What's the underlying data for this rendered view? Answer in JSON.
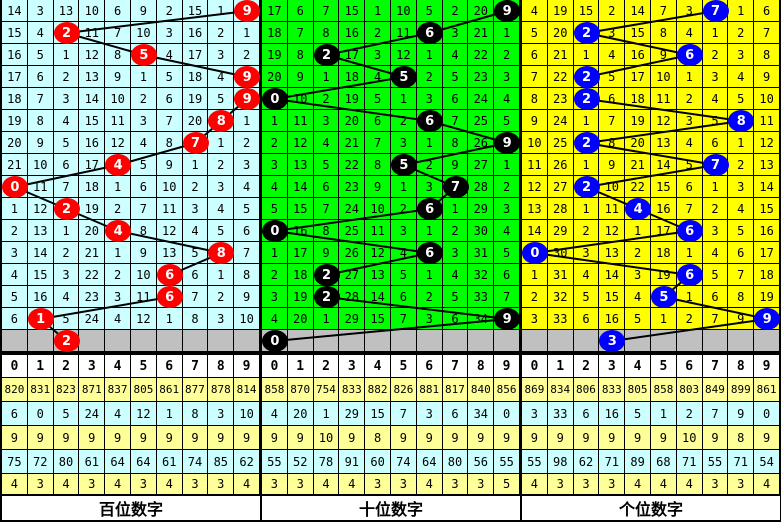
{
  "header_digits": [
    "0",
    "1",
    "2",
    "3",
    "4",
    "5",
    "6",
    "7",
    "8",
    "9"
  ],
  "colors": {
    "gray_row": "#c0c0c0",
    "stat_yellow": "#ffff99",
    "stat_cyan": "#ccffff"
  },
  "panels": [
    {
      "label": "百位数字",
      "bg": "#ccffff",
      "ball_color": "#ff0000",
      "rows": [
        [
          14,
          3,
          13,
          10,
          6,
          9,
          2,
          15,
          1,
          9
        ],
        [
          15,
          4,
          2,
          11,
          7,
          10,
          3,
          16,
          2,
          1
        ],
        [
          16,
          5,
          1,
          12,
          8,
          5,
          4,
          17,
          3,
          2
        ],
        [
          17,
          6,
          2,
          13,
          9,
          1,
          5,
          18,
          4,
          9
        ],
        [
          18,
          7,
          3,
          14,
          10,
          2,
          6,
          19,
          5,
          9
        ],
        [
          19,
          8,
          4,
          15,
          11,
          3,
          7,
          20,
          8,
          1
        ],
        [
          20,
          9,
          5,
          16,
          12,
          4,
          8,
          7,
          1,
          2
        ],
        [
          21,
          10,
          6,
          17,
          4,
          5,
          9,
          1,
          2,
          3
        ],
        [
          0,
          11,
          7,
          18,
          1,
          6,
          10,
          2,
          3,
          4
        ],
        [
          1,
          12,
          2,
          19,
          2,
          7,
          11,
          3,
          4,
          5
        ],
        [
          2,
          13,
          1,
          20,
          4,
          8,
          12,
          4,
          5,
          6
        ],
        [
          3,
          14,
          2,
          21,
          1,
          9,
          13,
          5,
          8,
          7
        ],
        [
          4,
          15,
          3,
          22,
          2,
          10,
          6,
          6,
          1,
          8
        ],
        [
          5,
          16,
          4,
          23,
          3,
          11,
          6,
          7,
          2,
          9
        ],
        [
          6,
          1,
          5,
          24,
          4,
          12,
          1,
          8,
          3,
          10
        ]
      ],
      "hits": [
        9,
        2,
        5,
        9,
        9,
        8,
        7,
        4,
        0,
        2,
        4,
        8,
        6,
        6,
        1
      ],
      "next": 2,
      "stats": [
        [
          "820",
          "831",
          "823",
          "871",
          "837",
          "805",
          "861",
          "877",
          "878",
          "814"
        ],
        [
          "6",
          "0",
          "5",
          "24",
          "4",
          "12",
          "1",
          "8",
          "3",
          "10"
        ],
        [
          "9",
          "9",
          "9",
          "9",
          "9",
          "9",
          "9",
          "9",
          "9",
          "9"
        ],
        [
          "75",
          "72",
          "80",
          "61",
          "64",
          "64",
          "61",
          "74",
          "85",
          "62"
        ],
        [
          "4",
          "3",
          "4",
          "3",
          "4",
          "3",
          "4",
          "3",
          "3",
          "4"
        ]
      ]
    },
    {
      "label": "十位数字",
      "bg": "#00ff00",
      "ball_color": "#000000",
      "rows": [
        [
          17,
          6,
          7,
          15,
          1,
          10,
          5,
          2,
          20,
          9
        ],
        [
          18,
          7,
          8,
          16,
          2,
          11,
          6,
          3,
          21,
          1
        ],
        [
          19,
          8,
          2,
          17,
          3,
          12,
          1,
          4,
          22,
          2
        ],
        [
          20,
          9,
          1,
          18,
          4,
          5,
          2,
          5,
          23,
          3
        ],
        [
          0,
          10,
          2,
          19,
          5,
          1,
          3,
          6,
          24,
          4
        ],
        [
          1,
          11,
          3,
          20,
          6,
          2,
          6,
          7,
          25,
          5
        ],
        [
          2,
          12,
          4,
          21,
          7,
          3,
          1,
          8,
          26,
          9
        ],
        [
          3,
          13,
          5,
          22,
          8,
          5,
          2,
          9,
          27,
          1
        ],
        [
          4,
          14,
          6,
          23,
          9,
          1,
          3,
          7,
          28,
          2
        ],
        [
          5,
          15,
          7,
          24,
          10,
          2,
          6,
          1,
          29,
          3
        ],
        [
          0,
          16,
          8,
          25,
          11,
          3,
          1,
          2,
          30,
          4
        ],
        [
          1,
          17,
          9,
          26,
          12,
          4,
          6,
          3,
          31,
          5
        ],
        [
          2,
          18,
          2,
          27,
          13,
          5,
          1,
          4,
          32,
          6
        ],
        [
          3,
          19,
          2,
          28,
          14,
          6,
          2,
          5,
          33,
          7
        ],
        [
          4,
          20,
          1,
          29,
          15,
          7,
          3,
          6,
          34,
          9
        ]
      ],
      "hits": [
        9,
        6,
        2,
        5,
        0,
        6,
        9,
        5,
        7,
        6,
        0,
        6,
        2,
        2,
        9
      ],
      "next": 0,
      "stats": [
        [
          "858",
          "870",
          "754",
          "833",
          "882",
          "826",
          "881",
          "817",
          "840",
          "856"
        ],
        [
          "4",
          "20",
          "1",
          "29",
          "15",
          "7",
          "3",
          "6",
          "34",
          "0"
        ],
        [
          "9",
          "9",
          "10",
          "9",
          "8",
          "9",
          "9",
          "9",
          "9",
          "9"
        ],
        [
          "55",
          "52",
          "78",
          "91",
          "60",
          "74",
          "64",
          "80",
          "56",
          "55"
        ],
        [
          "3",
          "3",
          "4",
          "4",
          "3",
          "3",
          "4",
          "3",
          "3",
          "5"
        ]
      ]
    },
    {
      "label": "个位数字",
      "bg": "#ffff00",
      "ball_color": "#0000ff",
      "rows": [
        [
          4,
          19,
          15,
          2,
          14,
          7,
          3,
          7,
          1,
          6
        ],
        [
          5,
          20,
          2,
          3,
          15,
          8,
          4,
          1,
          2,
          7
        ],
        [
          6,
          21,
          1,
          4,
          16,
          9,
          6,
          2,
          3,
          8
        ],
        [
          7,
          22,
          2,
          5,
          17,
          10,
          1,
          3,
          4,
          9
        ],
        [
          8,
          23,
          2,
          6,
          18,
          11,
          2,
          4,
          5,
          10
        ],
        [
          9,
          24,
          1,
          7,
          19,
          12,
          3,
          5,
          8,
          11
        ],
        [
          10,
          25,
          2,
          8,
          20,
          13,
          4,
          6,
          1,
          12
        ],
        [
          11,
          26,
          1,
          9,
          21,
          14,
          5,
          7,
          2,
          13
        ],
        [
          12,
          27,
          2,
          10,
          22,
          15,
          6,
          1,
          3,
          14
        ],
        [
          13,
          28,
          1,
          11,
          4,
          16,
          7,
          2,
          4,
          15
        ],
        [
          14,
          29,
          2,
          12,
          1,
          17,
          6,
          3,
          5,
          16
        ],
        [
          0,
          30,
          3,
          13,
          2,
          18,
          1,
          4,
          6,
          17
        ],
        [
          1,
          31,
          4,
          14,
          3,
          19,
          6,
          5,
          7,
          18
        ],
        [
          2,
          32,
          5,
          15,
          4,
          5,
          1,
          6,
          8,
          19
        ],
        [
          3,
          33,
          6,
          16,
          5,
          1,
          2,
          7,
          9,
          9
        ]
      ],
      "hits": [
        7,
        2,
        6,
        2,
        2,
        8,
        2,
        7,
        2,
        4,
        6,
        0,
        6,
        5,
        9
      ],
      "next": 3,
      "stats": [
        [
          "869",
          "834",
          "806",
          "833",
          "805",
          "858",
          "803",
          "849",
          "899",
          "861"
        ],
        [
          "3",
          "33",
          "6",
          "16",
          "5",
          "1",
          "2",
          "7",
          "9",
          "0"
        ],
        [
          "9",
          "9",
          "9",
          "9",
          "9",
          "9",
          "10",
          "9",
          "8",
          "9"
        ],
        [
          "55",
          "98",
          "62",
          "71",
          "89",
          "68",
          "71",
          "55",
          "71",
          "54"
        ],
        [
          "4",
          "3",
          "3",
          "3",
          "4",
          "4",
          "4",
          "3",
          "3",
          "4"
        ]
      ]
    }
  ]
}
